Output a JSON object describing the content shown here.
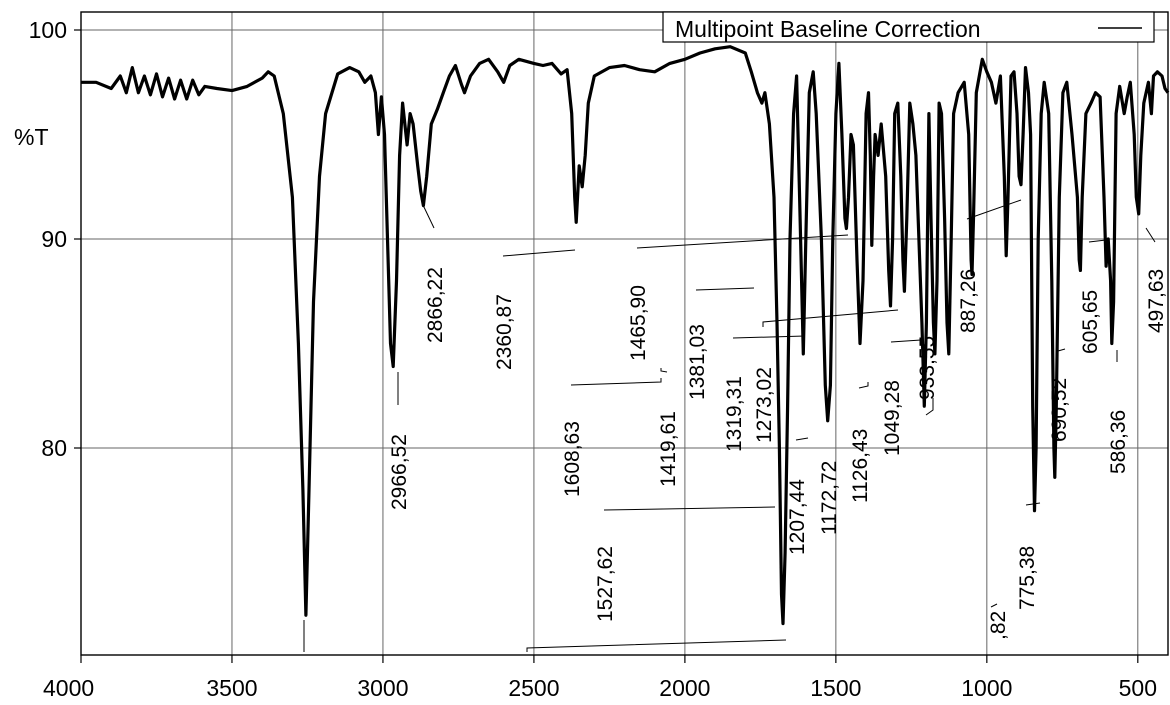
{
  "chart_data": {
    "type": "line",
    "title": "",
    "xlabel": "",
    "ylabel": "%T",
    "xlim": [
      4000,
      400
    ],
    "ylim": [
      70,
      101
    ],
    "x_reversed": true,
    "grid": true,
    "legend_position": "top-right",
    "x_ticks": [
      "4000",
      "3500",
      "3000",
      "2500",
      "2000",
      "1500",
      "1000",
      "500"
    ],
    "y_ticks": [
      "100",
      "90",
      "80"
    ],
    "legend": {
      "label": "Multipoint Baseline Correction"
    },
    "series": [
      {
        "name": "Multipoint Baseline Correction",
        "points": [
          [
            4000,
            97.5
          ],
          [
            3950,
            97.5
          ],
          [
            3900,
            97.2
          ],
          [
            3870,
            97.8
          ],
          [
            3850,
            97.0
          ],
          [
            3830,
            98.2
          ],
          [
            3810,
            97.0
          ],
          [
            3790,
            97.8
          ],
          [
            3770,
            96.9
          ],
          [
            3750,
            97.9
          ],
          [
            3730,
            96.8
          ],
          [
            3710,
            97.7
          ],
          [
            3690,
            96.7
          ],
          [
            3670,
            97.6
          ],
          [
            3650,
            96.7
          ],
          [
            3630,
            97.6
          ],
          [
            3610,
            96.9
          ],
          [
            3590,
            97.3
          ],
          [
            3550,
            97.2
          ],
          [
            3500,
            97.1
          ],
          [
            3450,
            97.3
          ],
          [
            3400,
            97.7
          ],
          [
            3380,
            98.0
          ],
          [
            3360,
            97.8
          ],
          [
            3330,
            96.0
          ],
          [
            3300,
            92.0
          ],
          [
            3280,
            85.0
          ],
          [
            3265,
            78.0
          ],
          [
            3255,
            72.0
          ],
          [
            3245,
            78.0
          ],
          [
            3230,
            87.0
          ],
          [
            3210,
            93.0
          ],
          [
            3190,
            96.0
          ],
          [
            3150,
            97.9
          ],
          [
            3110,
            98.2
          ],
          [
            3080,
            98.0
          ],
          [
            3060,
            97.5
          ],
          [
            3040,
            97.8
          ],
          [
            3025,
            97.0
          ],
          [
            3015,
            95.0
          ],
          [
            3005,
            96.8
          ],
          [
            2995,
            95.0
          ],
          [
            2985,
            90.0
          ],
          [
            2975,
            85.0
          ],
          [
            2966,
            83.9
          ],
          [
            2955,
            88.0
          ],
          [
            2945,
            94.0
          ],
          [
            2935,
            96.5
          ],
          [
            2920,
            94.5
          ],
          [
            2910,
            96.0
          ],
          [
            2900,
            95.5
          ],
          [
            2885,
            93.5
          ],
          [
            2875,
            92.3
          ],
          [
            2866,
            91.6
          ],
          [
            2855,
            93.0
          ],
          [
            2840,
            95.5
          ],
          [
            2820,
            96.2
          ],
          [
            2800,
            97.0
          ],
          [
            2780,
            97.8
          ],
          [
            2760,
            98.3
          ],
          [
            2740,
            97.4
          ],
          [
            2730,
            97.0
          ],
          [
            2710,
            97.8
          ],
          [
            2680,
            98.4
          ],
          [
            2650,
            98.6
          ],
          [
            2620,
            98.0
          ],
          [
            2600,
            97.5
          ],
          [
            2580,
            98.3
          ],
          [
            2550,
            98.6
          ],
          [
            2500,
            98.4
          ],
          [
            2470,
            98.3
          ],
          [
            2440,
            98.4
          ],
          [
            2410,
            97.9
          ],
          [
            2390,
            98.1
          ],
          [
            2375,
            96.0
          ],
          [
            2365,
            92.0
          ],
          [
            2360,
            90.8
          ],
          [
            2350,
            93.5
          ],
          [
            2340,
            92.5
          ],
          [
            2330,
            94.0
          ],
          [
            2320,
            96.5
          ],
          [
            2300,
            97.8
          ],
          [
            2250,
            98.2
          ],
          [
            2200,
            98.3
          ],
          [
            2150,
            98.1
          ],
          [
            2100,
            98.0
          ],
          [
            2050,
            98.4
          ],
          [
            2000,
            98.6
          ],
          [
            1950,
            98.9
          ],
          [
            1900,
            99.1
          ],
          [
            1850,
            99.2
          ],
          [
            1800,
            98.9
          ],
          [
            1780,
            98.0
          ],
          [
            1760,
            97.0
          ],
          [
            1745,
            96.5
          ],
          [
            1735,
            97.0
          ],
          [
            1720,
            95.5
          ],
          [
            1705,
            92.0
          ],
          [
            1695,
            86.0
          ],
          [
            1687,
            80.0
          ],
          [
            1680,
            73.0
          ],
          [
            1675,
            71.6
          ],
          [
            1668,
            75.0
          ],
          [
            1660,
            82.0
          ],
          [
            1652,
            90.0
          ],
          [
            1640,
            96.0
          ],
          [
            1630,
            97.8
          ],
          [
            1620,
            92.0
          ],
          [
            1608,
            84.5
          ],
          [
            1598,
            91.0
          ],
          [
            1588,
            97.0
          ],
          [
            1575,
            98.0
          ],
          [
            1565,
            96.0
          ],
          [
            1548,
            90.0
          ],
          [
            1535,
            83.0
          ],
          [
            1527,
            81.3
          ],
          [
            1518,
            83.0
          ],
          [
            1510,
            90.0
          ],
          [
            1500,
            96.0
          ],
          [
            1490,
            98.4
          ],
          [
            1480,
            95.0
          ],
          [
            1470,
            91.0
          ],
          [
            1465,
            90.5
          ],
          [
            1458,
            92.0
          ],
          [
            1450,
            95.0
          ],
          [
            1442,
            94.5
          ],
          [
            1430,
            89.0
          ],
          [
            1420,
            85.0
          ],
          [
            1410,
            88.0
          ],
          [
            1400,
            96.0
          ],
          [
            1392,
            97.0
          ],
          [
            1386,
            94.0
          ],
          [
            1381,
            89.7
          ],
          [
            1375,
            93.0
          ],
          [
            1370,
            95.0
          ],
          [
            1360,
            94.0
          ],
          [
            1350,
            95.5
          ],
          [
            1335,
            93.0
          ],
          [
            1325,
            88.5
          ],
          [
            1319,
            86.8
          ],
          [
            1312,
            90.0
          ],
          [
            1305,
            96.0
          ],
          [
            1295,
            96.5
          ],
          [
            1285,
            93.0
          ],
          [
            1278,
            89.0
          ],
          [
            1273,
            87.5
          ],
          [
            1265,
            91.0
          ],
          [
            1255,
            96.5
          ],
          [
            1245,
            95.5
          ],
          [
            1235,
            94.0
          ],
          [
            1225,
            90.0
          ],
          [
            1215,
            86.0
          ],
          [
            1207,
            82.0
          ],
          [
            1200,
            86.0
          ],
          [
            1192,
            96.0
          ],
          [
            1185,
            91.0
          ],
          [
            1177,
            86.0
          ],
          [
            1172,
            84.5
          ],
          [
            1165,
            88.0
          ],
          [
            1158,
            96.5
          ],
          [
            1150,
            96.0
          ],
          [
            1140,
            91.0
          ],
          [
            1132,
            86.0
          ],
          [
            1126,
            84.5
          ],
          [
            1118,
            90.0
          ],
          [
            1110,
            96.0
          ],
          [
            1095,
            97.0
          ],
          [
            1075,
            97.5
          ],
          [
            1060,
            95.0
          ],
          [
            1052,
            89.0
          ],
          [
            1049,
            88.3
          ],
          [
            1044,
            91.0
          ],
          [
            1035,
            97.0
          ],
          [
            1015,
            98.6
          ],
          [
            1000,
            98.0
          ],
          [
            985,
            97.5
          ],
          [
            970,
            96.5
          ],
          [
            955,
            97.8
          ],
          [
            942,
            93.0
          ],
          [
            936,
            89.2
          ],
          [
            930,
            92.0
          ],
          [
            920,
            97.8
          ],
          [
            910,
            98.0
          ],
          [
            900,
            96.0
          ],
          [
            893,
            93.0
          ],
          [
            887,
            92.6
          ],
          [
            880,
            95.0
          ],
          [
            872,
            98.2
          ],
          [
            862,
            97.0
          ],
          [
            855,
            95.0
          ],
          [
            848,
            82.0
          ],
          [
            842,
            77.0
          ],
          [
            837,
            80.0
          ],
          [
            830,
            90.0
          ],
          [
            820,
            96.0
          ],
          [
            810,
            97.5
          ],
          [
            795,
            96.0
          ],
          [
            785,
            88.0
          ],
          [
            778,
            80.0
          ],
          [
            775,
            78.6
          ],
          [
            770,
            82.0
          ],
          [
            760,
            92.0
          ],
          [
            748,
            97.0
          ],
          [
            735,
            97.5
          ],
          [
            718,
            95.0
          ],
          [
            700,
            92.0
          ],
          [
            694,
            89.0
          ],
          [
            690,
            88.5
          ],
          [
            684,
            92.0
          ],
          [
            672,
            96.0
          ],
          [
            655,
            96.5
          ],
          [
            640,
            97.0
          ],
          [
            625,
            96.8
          ],
          [
            612,
            92.0
          ],
          [
            605,
            88.7
          ],
          [
            598,
            90.0
          ],
          [
            590,
            88.0
          ],
          [
            586,
            85.0
          ],
          [
            580,
            87.0
          ],
          [
            572,
            96.0
          ],
          [
            560,
            97.3
          ],
          [
            545,
            96.0
          ],
          [
            535,
            96.8
          ],
          [
            525,
            97.5
          ],
          [
            512,
            95.0
          ],
          [
            505,
            92.0
          ],
          [
            497,
            91.2
          ],
          [
            490,
            94.0
          ],
          [
            480,
            96.5
          ],
          [
            465,
            97.5
          ],
          [
            455,
            96.0
          ],
          [
            448,
            97.8
          ],
          [
            435,
            98.0
          ],
          [
            420,
            97.8
          ],
          [
            410,
            97.2
          ],
          [
            400,
            97.0
          ]
        ]
      }
    ],
    "peak_labels": [
      {
        "text": "2966,52"
      },
      {
        "text": "2866,22"
      },
      {
        "text": "2360,87"
      },
      {
        "text": "1465,90"
      },
      {
        "text": "1608,63"
      },
      {
        "text": "1419,61"
      },
      {
        "text": "1381,03"
      },
      {
        "text": "1319,31"
      },
      {
        "text": "1273,02"
      },
      {
        "text": "1527,62"
      },
      {
        "text": "1207,44"
      },
      {
        "text": "1172,72"
      },
      {
        "text": "1126,43"
      },
      {
        "text": "1049,28"
      },
      {
        "text": "933,55"
      },
      {
        "text": "887,26"
      },
      {
        "text": "775,38"
      },
      {
        "text": "690,52"
      },
      {
        "text": "605,65"
      },
      {
        "text": "586,36"
      },
      {
        "text": "497,63"
      },
      {
        "text": ",82"
      }
    ]
  }
}
